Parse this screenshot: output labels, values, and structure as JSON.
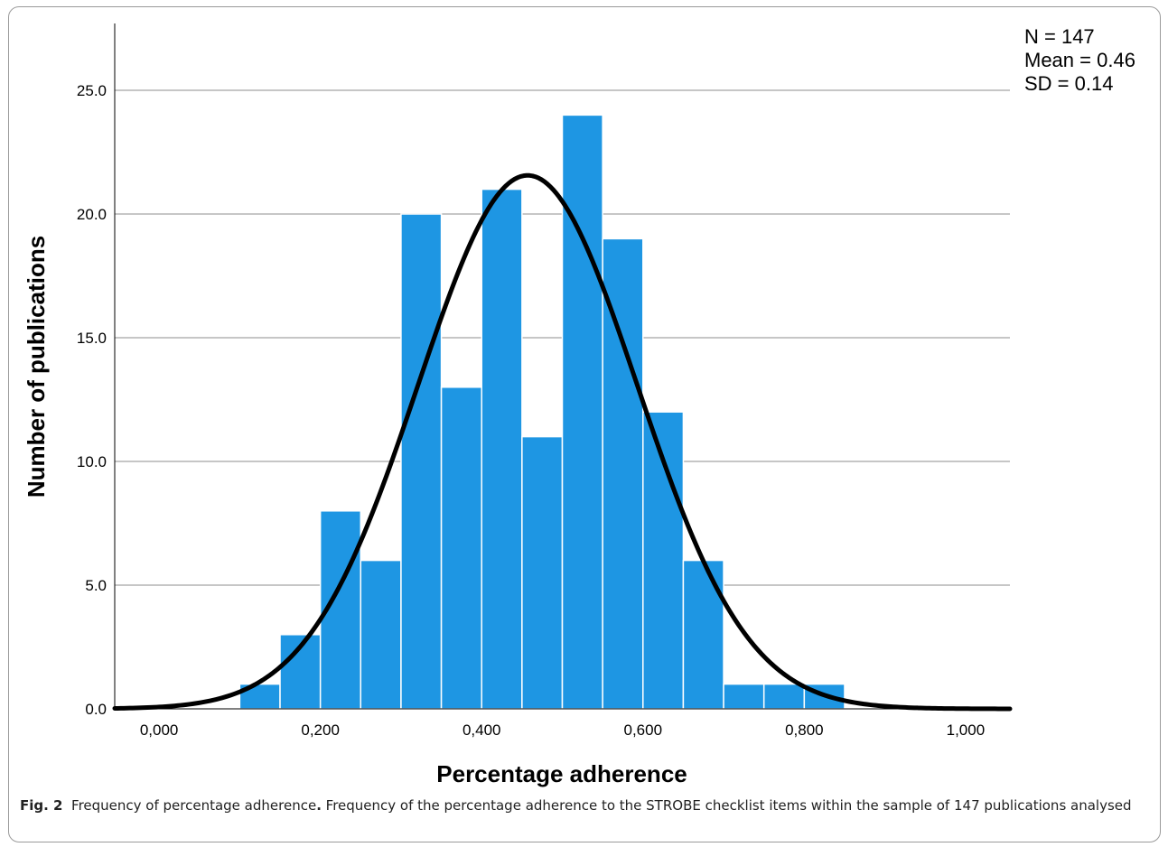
{
  "stats": {
    "n": "N = 147",
    "mean": "Mean = 0.46",
    "sd": "SD = 0.14"
  },
  "caption": {
    "label": "Fig. 2",
    "title": "Frequency of percentage adherence",
    "title_end": ".",
    "text": " Frequency of the percentage adherence to the STROBE checklist items within the sample of 147 publications analysed"
  },
  "colors": {
    "bar": "#1e96e3",
    "curve": "#000000",
    "grid": "#b4b4b4"
  },
  "chart_data": {
    "type": "bar",
    "xlabel": "Percentage adherence",
    "ylabel": "Number of publications",
    "x_tick_labels": [
      "0,000",
      "0,200",
      "0,400",
      "0,600",
      "0,800",
      "1,000"
    ],
    "x_ticks": [
      0,
      0.2,
      0.4,
      0.6,
      0.8,
      1.0
    ],
    "y_tick_labels": [
      "0.0",
      "5.0",
      "10.0",
      "15.0",
      "20.0",
      "25.0"
    ],
    "y_ticks": [
      0,
      5,
      10,
      15,
      20,
      25
    ],
    "xlim": [
      -0.055,
      1.055
    ],
    "ylim": [
      0,
      27.7
    ],
    "bin_width": 0.05,
    "bins": [
      {
        "start": 0.1,
        "count": 1
      },
      {
        "start": 0.15,
        "count": 3
      },
      {
        "start": 0.2,
        "count": 8
      },
      {
        "start": 0.25,
        "count": 6
      },
      {
        "start": 0.3,
        "count": 20
      },
      {
        "start": 0.35,
        "count": 13
      },
      {
        "start": 0.4,
        "count": 21
      },
      {
        "start": 0.45,
        "count": 11
      },
      {
        "start": 0.5,
        "count": 24
      },
      {
        "start": 0.55,
        "count": 19
      },
      {
        "start": 0.6,
        "count": 12
      },
      {
        "start": 0.65,
        "count": 6
      },
      {
        "start": 0.7,
        "count": 1
      },
      {
        "start": 0.75,
        "count": 1
      },
      {
        "start": 0.8,
        "count": 1
      }
    ],
    "normal_curve": {
      "n": 147,
      "mean": 0.457,
      "sd": 0.136
    },
    "grid": true
  }
}
